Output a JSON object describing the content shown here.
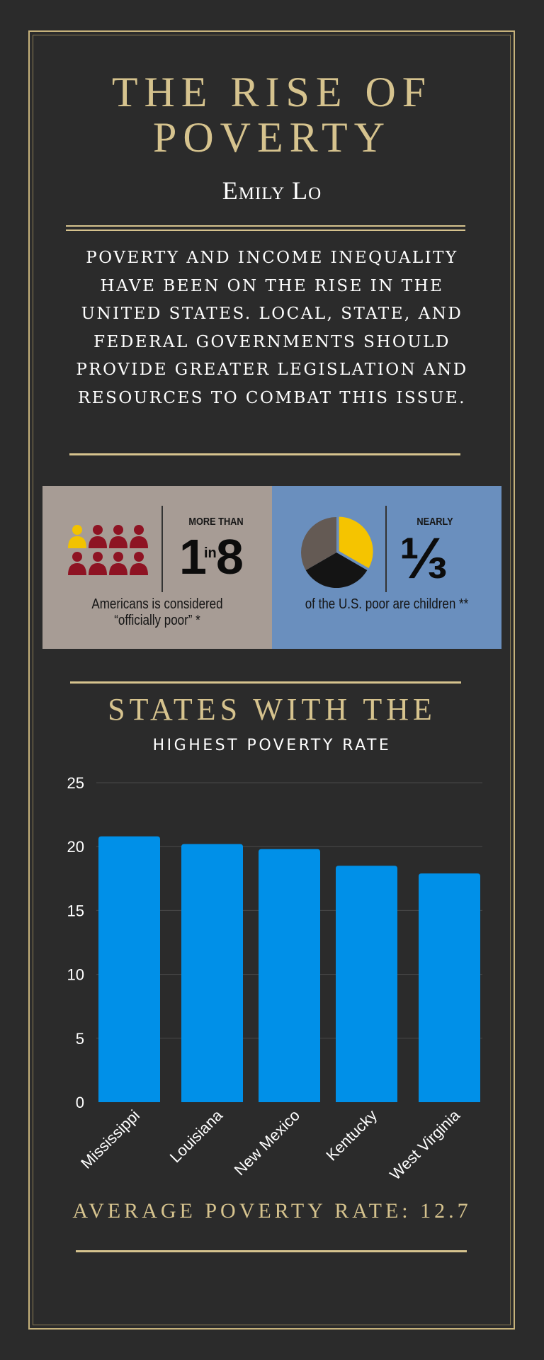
{
  "header": {
    "title_line1": "THE RISE OF",
    "title_line2": "POVERTY",
    "author": "Emily Lo"
  },
  "intro": "Poverty and income inequality have been on the rise in the United States. Local, State, and federal governments should provide greater legislation and resources to combat this issue.",
  "stats": {
    "left": {
      "qualifier": "MORE THAN",
      "number_a": "1",
      "number_in": "in",
      "number_b": "8",
      "caption_line1": "Americans is considered",
      "caption_line2": "“officially poor” *",
      "highlighted_of": 1,
      "total_figures": 8,
      "figure_icon": "person-icon",
      "highlight_color": "#f2c200",
      "base_color": "#8e1323"
    },
    "right": {
      "qualifier": "NEARLY",
      "number": "⅓",
      "caption": "of the U.S. poor are children **",
      "pie_icon": "pie-chart-icon",
      "fraction": 0.3333,
      "colors": [
        "#f5c400",
        "#141414",
        "#645a54"
      ]
    }
  },
  "chart_section": {
    "title": "STATES WITH THE",
    "subtitle": "HIGHEST POVERTY RATE",
    "average_label": "AVERAGE POVERTY RATE: 12.7"
  },
  "chart_data": {
    "type": "bar",
    "title": "STATES WITH THE HIGHEST POVERTY RATE",
    "categories": [
      "Mississippi",
      "Louisiana",
      "New Mexico",
      "Kentucky",
      "West Virginia"
    ],
    "values": [
      20.8,
      20.2,
      19.8,
      18.5,
      17.9
    ],
    "ylim": [
      0,
      25
    ],
    "yticks": [
      0,
      5,
      10,
      15,
      20,
      25
    ],
    "xlabel": "",
    "ylabel": "",
    "grid": true,
    "bar_color": "#0090e8",
    "legend": "none"
  }
}
